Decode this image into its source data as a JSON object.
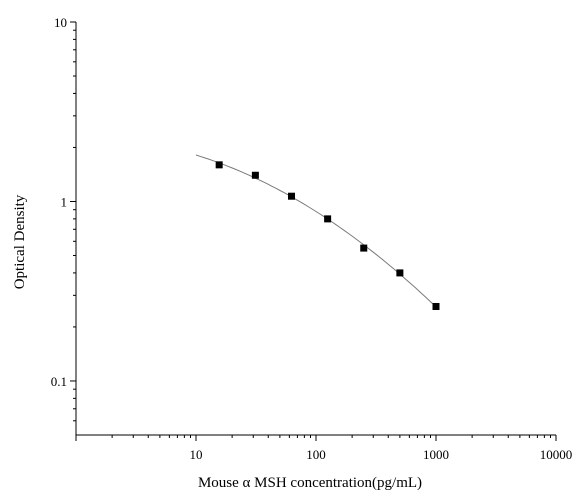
{
  "chart_data": {
    "type": "scatter",
    "title": "",
    "xlabel": "Mouse α MSH concentration(pg/mL)",
    "ylabel": "Optical Density",
    "x_scale": "log",
    "y_scale": "log",
    "xlim": [
      1,
      10000
    ],
    "ylim": [
      0.05,
      10
    ],
    "x_ticks": [
      10,
      100,
      1000,
      10000
    ],
    "x_tick_labels": [
      "10",
      "100",
      "1000",
      "10000"
    ],
    "y_ticks": [
      0.1,
      1,
      10
    ],
    "y_tick_labels": [
      "0.1",
      "1",
      "10"
    ],
    "grid": false,
    "legend": "none",
    "series": [
      {
        "x": [
          15.6,
          31.25,
          62.5,
          125,
          250,
          500,
          1000
        ],
        "y": [
          1.6,
          1.4,
          1.07,
          0.8,
          0.55,
          0.4,
          0.26
        ],
        "marker": "square",
        "fit_line": true
      }
    ],
    "fit_curve_x_range": [
      10,
      1000
    ],
    "colors": {
      "line": "#7a7a7a",
      "marker": "#000000",
      "axis": "#000000"
    }
  }
}
